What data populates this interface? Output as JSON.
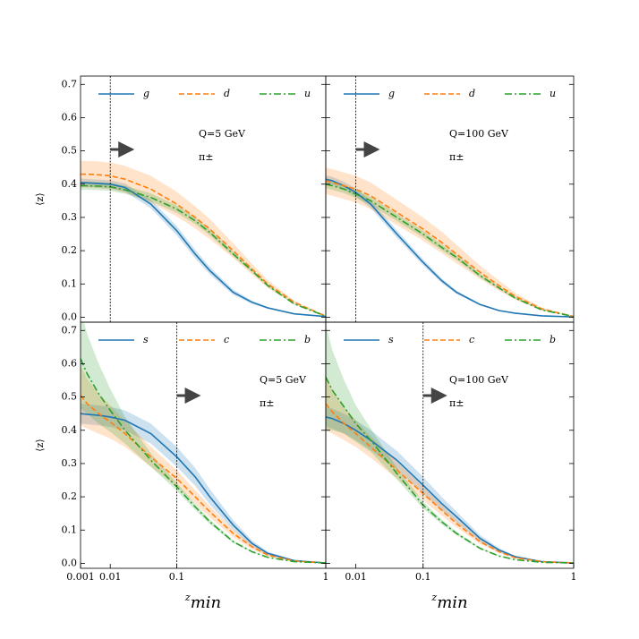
{
  "chart_data": [
    {
      "type": "line",
      "ylabel": "⟨z⟩",
      "annotation": [
        "Q=5 GeV",
        "π±"
      ],
      "vline": 0.01,
      "xscale": "power",
      "xpower": 0.35,
      "xlim": [
        0.001,
        1
      ],
      "ylim": [
        -0.015,
        0.725
      ],
      "yticks": [
        {
          "value": 0,
          "label": "0.0"
        },
        0.1,
        0.2,
        0.3,
        0.4,
        0.5,
        0.6,
        0.7
      ],
      "x": [
        0.001,
        0.002,
        0.005,
        0.01,
        0.02,
        0.05,
        0.1,
        0.15,
        0.2,
        0.3,
        0.4,
        0.5,
        0.7,
        1
      ],
      "series": [
        {
          "name": "g",
          "color": "#1f77b4",
          "style": "solid",
          "values": [
            0.405,
            0.404,
            0.402,
            0.4,
            0.39,
            0.34,
            0.26,
            0.19,
            0.14,
            0.075,
            0.045,
            0.028,
            0.01,
            0.002
          ],
          "error": [
            0.012,
            0.012,
            0.012,
            0.012,
            0.012,
            0.013,
            0.014,
            0.013,
            0.011,
            0.008,
            0.005,
            0.003,
            0.001,
            0
          ]
        },
        {
          "name": "d",
          "color": "#ff7f0e",
          "style": "dashed",
          "values": [
            0.43,
            0.43,
            0.428,
            0.425,
            0.415,
            0.385,
            0.34,
            0.3,
            0.265,
            0.2,
            0.145,
            0.1,
            0.045,
            0.003
          ],
          "error": [
            0.04,
            0.04,
            0.04,
            0.04,
            0.04,
            0.04,
            0.037,
            0.033,
            0.03,
            0.022,
            0.016,
            0.011,
            0.005,
            0
          ]
        },
        {
          "name": "u",
          "color": "#2ca02c",
          "style": "dashdot",
          "values": [
            0.395,
            0.395,
            0.394,
            0.392,
            0.383,
            0.36,
            0.325,
            0.29,
            0.255,
            0.19,
            0.14,
            0.095,
            0.04,
            0.003
          ],
          "error": [
            0.012,
            0.012,
            0.012,
            0.012,
            0.012,
            0.012,
            0.011,
            0.01,
            0.009,
            0.007,
            0.005,
            0.004,
            0.002,
            0
          ]
        }
      ]
    },
    {
      "type": "line",
      "annotation": [
        "Q=100 GeV",
        "π±"
      ],
      "vline": 0.01,
      "xscale": "power",
      "xpower": 0.35,
      "xlim": [
        0.001,
        1
      ],
      "ylim": [
        -0.015,
        0.725
      ],
      "yticks": [
        0,
        0.1,
        0.2,
        0.3,
        0.4,
        0.5,
        0.6,
        0.7
      ],
      "x": [
        0.001,
        0.002,
        0.005,
        0.01,
        0.02,
        0.05,
        0.1,
        0.15,
        0.2,
        0.3,
        0.4,
        0.5,
        0.7,
        1
      ],
      "series": [
        {
          "name": "g",
          "color": "#1f77b4",
          "style": "solid",
          "values": [
            0.415,
            0.41,
            0.395,
            0.375,
            0.34,
            0.25,
            0.165,
            0.11,
            0.075,
            0.038,
            0.02,
            0.012,
            0.004,
            0.001
          ],
          "error": [
            0.012,
            0.012,
            0.012,
            0.012,
            0.012,
            0.011,
            0.009,
            0.007,
            0.005,
            0.003,
            0.002,
            0.001,
            0,
            0
          ]
        },
        {
          "name": "d",
          "color": "#ff7f0e",
          "style": "dashed",
          "values": [
            0.41,
            0.405,
            0.395,
            0.385,
            0.365,
            0.315,
            0.265,
            0.225,
            0.19,
            0.135,
            0.095,
            0.063,
            0.025,
            0.002
          ],
          "error": [
            0.04,
            0.04,
            0.04,
            0.04,
            0.04,
            0.038,
            0.035,
            0.032,
            0.028,
            0.02,
            0.015,
            0.01,
            0.004,
            0
          ]
        },
        {
          "name": "u",
          "color": "#2ca02c",
          "style": "dashdot",
          "values": [
            0.4,
            0.395,
            0.385,
            0.37,
            0.35,
            0.3,
            0.25,
            0.21,
            0.18,
            0.125,
            0.088,
            0.058,
            0.022,
            0.002
          ],
          "error": [
            0.012,
            0.012,
            0.012,
            0.012,
            0.012,
            0.011,
            0.01,
            0.009,
            0.008,
            0.006,
            0.004,
            0.003,
            0.001,
            0
          ]
        }
      ]
    },
    {
      "type": "line",
      "ylabel": "⟨z⟩",
      "xlabel": "z",
      "xlabel_subscript": "min",
      "annotation": [
        "Q=5 GeV",
        "π±"
      ],
      "vline": 0.1,
      "xscale": "power",
      "xpower": 0.35,
      "xlim": [
        0.001,
        1
      ],
      "ylim": [
        -0.015,
        0.725
      ],
      "xticks": [
        0.001,
        0.01,
        0.1,
        1
      ],
      "yticks": [
        {
          "value": 0,
          "label": "0.0"
        },
        0.1,
        0.2,
        0.3,
        0.4,
        0.5,
        0.6,
        0.7
      ],
      "x": [
        0.001,
        0.002,
        0.005,
        0.01,
        0.02,
        0.05,
        0.1,
        0.15,
        0.2,
        0.3,
        0.4,
        0.5,
        0.7,
        1
      ],
      "series": [
        {
          "name": "s",
          "color": "#1f77b4",
          "style": "solid",
          "values": [
            0.45,
            0.448,
            0.445,
            0.44,
            0.43,
            0.39,
            0.32,
            0.26,
            0.2,
            0.115,
            0.06,
            0.03,
            0.008,
            0.001
          ],
          "error": [
            0.03,
            0.03,
            0.03,
            0.03,
            0.03,
            0.03,
            0.03,
            0.027,
            0.023,
            0.015,
            0.009,
            0.005,
            0.002,
            0
          ]
        },
        {
          "name": "c",
          "color": "#ff7f0e",
          "style": "dashed",
          "values": [
            0.505,
            0.48,
            0.45,
            0.425,
            0.39,
            0.32,
            0.255,
            0.2,
            0.155,
            0.09,
            0.05,
            0.025,
            0.007,
            0.001
          ],
          "error": [
            0.09,
            0.075,
            0.06,
            0.05,
            0.04,
            0.03,
            0.025,
            0.02,
            0.017,
            0.011,
            0.007,
            0.004,
            0.001,
            0
          ]
        },
        {
          "name": "b",
          "color": "#2ca02c",
          "style": "dashdot",
          "values": [
            0.615,
            0.57,
            0.51,
            0.46,
            0.4,
            0.31,
            0.23,
            0.17,
            0.125,
            0.065,
            0.035,
            0.018,
            0.005,
            0.001
          ],
          "error": [
            0.15,
            0.12,
            0.09,
            0.065,
            0.04,
            0.02,
            0.012,
            0.009,
            0.007,
            0.004,
            0.002,
            0.001,
            0,
            0
          ]
        }
      ]
    },
    {
      "type": "line",
      "xlabel": "z",
      "xlabel_subscript": "min",
      "annotation": [
        "Q=100 GeV",
        "π±"
      ],
      "vline": 0.1,
      "xscale": "power",
      "xpower": 0.35,
      "xlim": [
        0.001,
        1
      ],
      "ylim": [
        -0.015,
        0.725
      ],
      "xticks": [
        0.01,
        0.1,
        1
      ],
      "yticks": [
        0,
        0.1,
        0.2,
        0.3,
        0.4,
        0.5,
        0.6,
        0.7
      ],
      "x": [
        0.001,
        0.002,
        0.005,
        0.01,
        0.02,
        0.05,
        0.1,
        0.15,
        0.2,
        0.3,
        0.4,
        0.5,
        0.7,
        1
      ],
      "series": [
        {
          "name": "s",
          "color": "#1f77b4",
          "style": "solid",
          "values": [
            0.44,
            0.435,
            0.42,
            0.4,
            0.37,
            0.31,
            0.235,
            0.18,
            0.14,
            0.075,
            0.04,
            0.02,
            0.005,
            0.001
          ],
          "error": [
            0.03,
            0.03,
            0.03,
            0.03,
            0.03,
            0.028,
            0.025,
            0.02,
            0.016,
            0.01,
            0.006,
            0.003,
            0.001,
            0
          ]
        },
        {
          "name": "c",
          "color": "#ff7f0e",
          "style": "dashed",
          "values": [
            0.48,
            0.455,
            0.42,
            0.39,
            0.35,
            0.28,
            0.21,
            0.16,
            0.12,
            0.065,
            0.035,
            0.017,
            0.005,
            0.001
          ],
          "error": [
            0.08,
            0.065,
            0.05,
            0.04,
            0.033,
            0.025,
            0.02,
            0.016,
            0.012,
            0.007,
            0.004,
            0.002,
            0.001,
            0
          ]
        },
        {
          "name": "b",
          "color": "#2ca02c",
          "style": "dashdot",
          "values": [
            0.56,
            0.52,
            0.47,
            0.42,
            0.37,
            0.27,
            0.175,
            0.125,
            0.09,
            0.045,
            0.022,
            0.011,
            0.003,
            0.001
          ],
          "error": [
            0.16,
            0.12,
            0.08,
            0.055,
            0.035,
            0.018,
            0.01,
            0.007,
            0.005,
            0.003,
            0.001,
            0.001,
            0,
            0
          ]
        }
      ]
    }
  ]
}
